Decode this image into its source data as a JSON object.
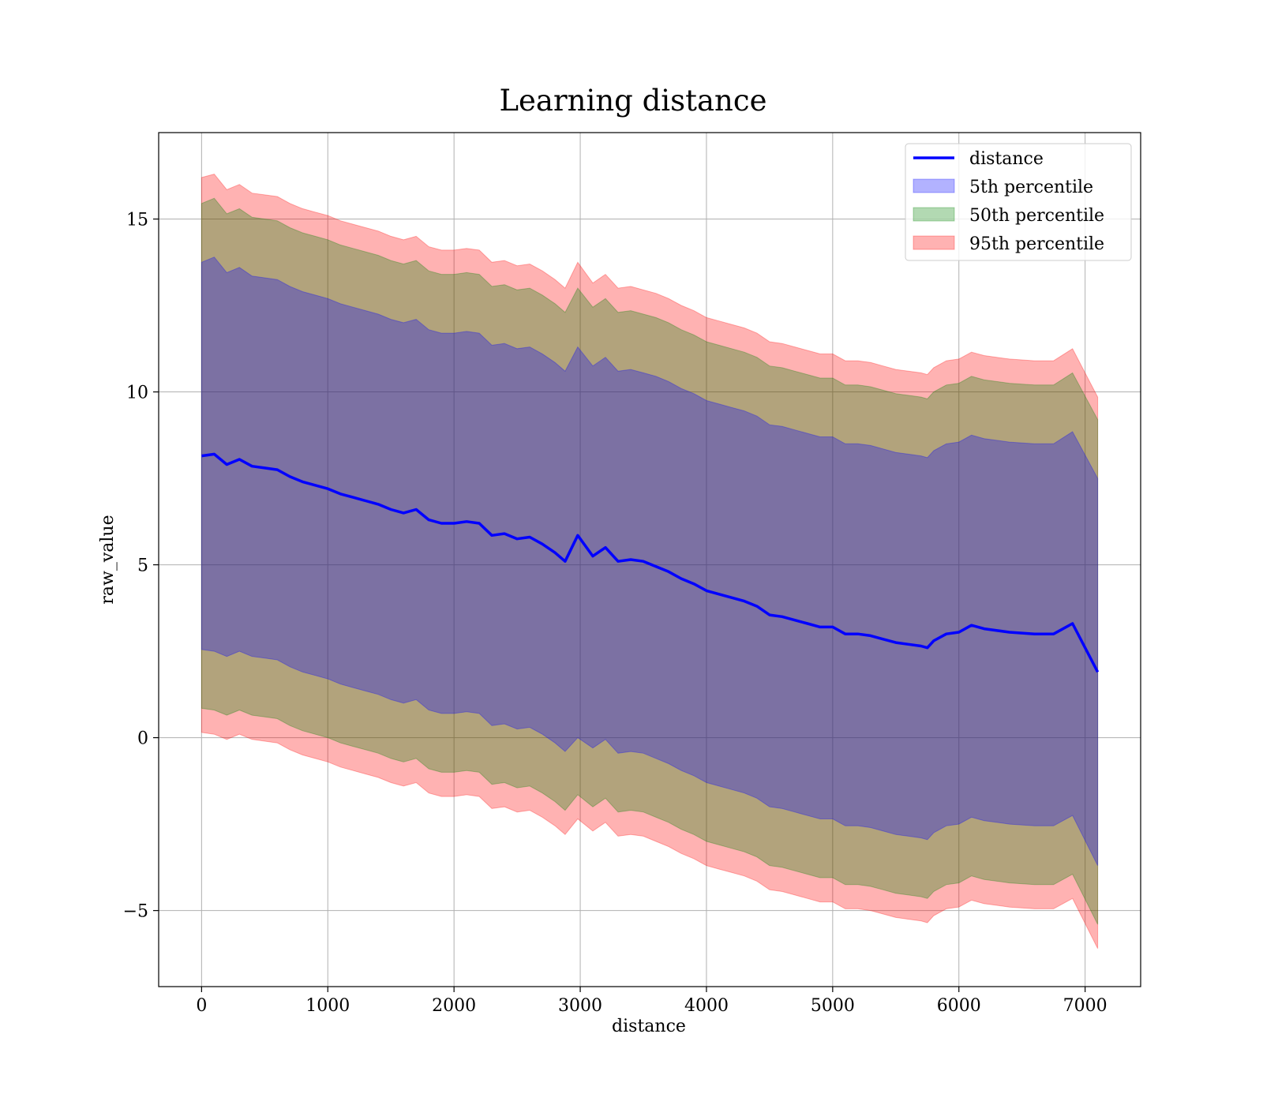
{
  "chart_data": {
    "type": "line",
    "title": "Learning distance",
    "xlabel": "distance",
    "ylabel": "raw_value",
    "xlim": [
      -340,
      7440
    ],
    "ylim": [
      -7.2,
      17.5
    ],
    "x_ticks": [
      0,
      1000,
      2000,
      3000,
      4000,
      5000,
      6000,
      7000
    ],
    "x_tick_labels": [
      "0",
      "1000",
      "2000",
      "3000",
      "4000",
      "5000",
      "6000",
      "7000"
    ],
    "y_ticks": [
      -5,
      0,
      5,
      10,
      15
    ],
    "y_tick_labels": [
      "−5",
      "0",
      "5",
      "10",
      "15"
    ],
    "grid": true,
    "legend_position": "top-right",
    "legend": [
      "distance",
      "5th percentile",
      "50th percentile",
      "95th percentile"
    ],
    "colors": {
      "line": "#0000ff",
      "band_5": "#0000ff",
      "band_50": "#008000",
      "band_95": "#ff0000"
    },
    "x": [
      0,
      100,
      200,
      300,
      400,
      500,
      600,
      700,
      800,
      900,
      1000,
      1100,
      1200,
      1300,
      1400,
      1500,
      1600,
      1700,
      1800,
      1900,
      2000,
      2100,
      2200,
      2300,
      2400,
      2500,
      2600,
      2700,
      2800,
      2880,
      2980,
      3100,
      3200,
      3300,
      3400,
      3500,
      3600,
      3700,
      3800,
      3900,
      4000,
      4100,
      4200,
      4300,
      4400,
      4500,
      4600,
      4700,
      4800,
      4900,
      5000,
      5100,
      5200,
      5300,
      5400,
      5500,
      5600,
      5700,
      5750,
      5800,
      5900,
      6000,
      6100,
      6200,
      6400,
      6600,
      6750,
      6900,
      7100
    ],
    "series": [
      {
        "name": "distance",
        "values": [
          8.15,
          8.2,
          7.9,
          8.05,
          7.85,
          7.8,
          7.75,
          7.55,
          7.4,
          7.3,
          7.2,
          7.05,
          6.95,
          6.85,
          6.75,
          6.6,
          6.5,
          6.6,
          6.3,
          6.2,
          6.2,
          6.25,
          6.2,
          5.85,
          5.9,
          5.75,
          5.8,
          5.6,
          5.35,
          5.1,
          5.85,
          5.25,
          5.5,
          5.1,
          5.15,
          5.1,
          4.95,
          4.8,
          4.6,
          4.45,
          4.25,
          4.15,
          4.05,
          3.95,
          3.8,
          3.55,
          3.5,
          3.4,
          3.3,
          3.2,
          3.2,
          3.0,
          3.0,
          2.95,
          2.85,
          2.75,
          2.7,
          2.65,
          2.6,
          2.8,
          3.0,
          3.05,
          3.25,
          3.15,
          3.05,
          3.0,
          3.0,
          3.3,
          1.9
        ]
      }
    ],
    "bands": [
      {
        "name": "5th percentile",
        "lower": [
          2.55,
          2.5,
          2.35,
          2.5,
          2.35,
          2.3,
          2.25,
          2.05,
          1.9,
          1.8,
          1.7,
          1.55,
          1.45,
          1.35,
          1.25,
          1.1,
          1.0,
          1.1,
          0.8,
          0.7,
          0.7,
          0.75,
          0.7,
          0.35,
          0.4,
          0.25,
          0.3,
          0.1,
          -0.15,
          -0.4,
          0.0,
          -0.3,
          -0.05,
          -0.45,
          -0.4,
          -0.45,
          -0.6,
          -0.75,
          -0.95,
          -1.1,
          -1.3,
          -1.4,
          -1.5,
          -1.6,
          -1.75,
          -2.0,
          -2.05,
          -2.15,
          -2.25,
          -2.35,
          -2.35,
          -2.55,
          -2.55,
          -2.6,
          -2.7,
          -2.8,
          -2.85,
          -2.9,
          -2.95,
          -2.75,
          -2.55,
          -2.5,
          -2.3,
          -2.4,
          -2.5,
          -2.55,
          -2.55,
          -2.25,
          -3.7
        ],
        "upper": [
          13.75,
          13.9,
          13.45,
          13.6,
          13.35,
          13.3,
          13.25,
          13.05,
          12.9,
          12.8,
          12.7,
          12.55,
          12.45,
          12.35,
          12.25,
          12.1,
          12.0,
          12.1,
          11.8,
          11.7,
          11.7,
          11.75,
          11.7,
          11.35,
          11.4,
          11.25,
          11.3,
          11.1,
          10.85,
          10.6,
          11.3,
          10.75,
          11.0,
          10.6,
          10.65,
          10.55,
          10.45,
          10.3,
          10.1,
          9.95,
          9.75,
          9.65,
          9.55,
          9.45,
          9.3,
          9.05,
          9.0,
          8.9,
          8.8,
          8.7,
          8.7,
          8.5,
          8.5,
          8.45,
          8.35,
          8.25,
          8.2,
          8.15,
          8.1,
          8.3,
          8.5,
          8.55,
          8.75,
          8.65,
          8.55,
          8.5,
          8.5,
          8.85,
          7.5
        ]
      },
      {
        "name": "50th percentile",
        "lower": [
          0.85,
          0.8,
          0.65,
          0.8,
          0.65,
          0.6,
          0.55,
          0.35,
          0.2,
          0.1,
          0.0,
          -0.15,
          -0.25,
          -0.35,
          -0.45,
          -0.6,
          -0.7,
          -0.6,
          -0.9,
          -1.0,
          -1.0,
          -0.95,
          -1.0,
          -1.35,
          -1.3,
          -1.45,
          -1.4,
          -1.6,
          -1.85,
          -2.1,
          -1.65,
          -2.0,
          -1.75,
          -2.15,
          -2.1,
          -2.15,
          -2.3,
          -2.45,
          -2.65,
          -2.8,
          -3.0,
          -3.1,
          -3.2,
          -3.3,
          -3.45,
          -3.7,
          -3.75,
          -3.85,
          -3.95,
          -4.05,
          -4.05,
          -4.25,
          -4.25,
          -4.3,
          -4.4,
          -4.5,
          -4.55,
          -4.6,
          -4.65,
          -4.45,
          -4.25,
          -4.2,
          -4.0,
          -4.1,
          -4.2,
          -4.25,
          -4.25,
          -3.95,
          -5.4
        ],
        "upper": [
          15.45,
          15.6,
          15.15,
          15.3,
          15.05,
          15.0,
          14.95,
          14.75,
          14.6,
          14.5,
          14.4,
          14.25,
          14.15,
          14.05,
          13.95,
          13.8,
          13.7,
          13.8,
          13.5,
          13.4,
          13.4,
          13.45,
          13.4,
          13.05,
          13.1,
          12.95,
          13.0,
          12.8,
          12.55,
          12.3,
          13.0,
          12.45,
          12.7,
          12.3,
          12.35,
          12.25,
          12.15,
          12.0,
          11.8,
          11.65,
          11.45,
          11.35,
          11.25,
          11.15,
          11.0,
          10.75,
          10.7,
          10.6,
          10.5,
          10.4,
          10.4,
          10.2,
          10.2,
          10.15,
          10.05,
          9.95,
          9.9,
          9.85,
          9.8,
          10.0,
          10.2,
          10.25,
          10.45,
          10.35,
          10.25,
          10.2,
          10.2,
          10.55,
          9.2
        ]
      },
      {
        "name": "95th percentile",
        "lower": [
          0.15,
          0.1,
          -0.05,
          0.1,
          -0.05,
          -0.1,
          -0.15,
          -0.35,
          -0.5,
          -0.6,
          -0.7,
          -0.85,
          -0.95,
          -1.05,
          -1.15,
          -1.3,
          -1.4,
          -1.3,
          -1.6,
          -1.7,
          -1.7,
          -1.65,
          -1.7,
          -2.05,
          -2.0,
          -2.15,
          -2.1,
          -2.3,
          -2.55,
          -2.8,
          -2.35,
          -2.7,
          -2.45,
          -2.85,
          -2.8,
          -2.85,
          -3.0,
          -3.15,
          -3.35,
          -3.5,
          -3.7,
          -3.8,
          -3.9,
          -4.0,
          -4.15,
          -4.4,
          -4.45,
          -4.55,
          -4.65,
          -4.75,
          -4.75,
          -4.95,
          -4.95,
          -5.0,
          -5.1,
          -5.2,
          -5.25,
          -5.3,
          -5.35,
          -5.15,
          -4.95,
          -4.9,
          -4.7,
          -4.8,
          -4.9,
          -4.95,
          -4.95,
          -4.65,
          -6.1
        ],
        "upper": [
          16.2,
          16.3,
          15.85,
          16.0,
          15.75,
          15.7,
          15.65,
          15.45,
          15.3,
          15.2,
          15.1,
          14.95,
          14.85,
          14.75,
          14.65,
          14.5,
          14.4,
          14.5,
          14.2,
          14.1,
          14.1,
          14.15,
          14.1,
          13.75,
          13.8,
          13.65,
          13.7,
          13.5,
          13.25,
          13.0,
          13.75,
          13.15,
          13.4,
          13.0,
          13.05,
          12.95,
          12.85,
          12.7,
          12.5,
          12.35,
          12.15,
          12.05,
          11.95,
          11.85,
          11.7,
          11.45,
          11.4,
          11.3,
          11.2,
          11.1,
          11.1,
          10.9,
          10.9,
          10.85,
          10.75,
          10.65,
          10.6,
          10.55,
          10.5,
          10.7,
          10.9,
          10.95,
          11.15,
          11.05,
          10.95,
          10.9,
          10.9,
          11.25,
          9.85
        ]
      }
    ]
  }
}
